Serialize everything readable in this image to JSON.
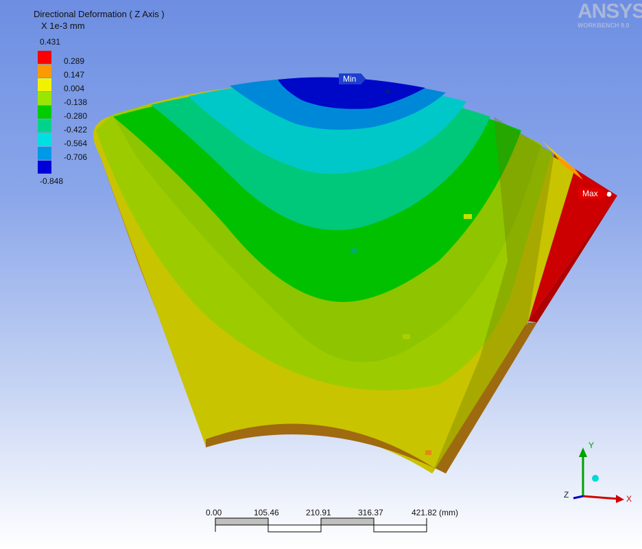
{
  "legend": {
    "title": "Directional Deformation ( Z Axis )",
    "units": "X 1e-3 mm",
    "max": "0.431",
    "min": "-0.848",
    "bands": [
      {
        "value": "0.289",
        "color": "#ff0000"
      },
      {
        "value": "0.147",
        "color": "#ff9900"
      },
      {
        "value": "0.004",
        "color": "#f2f200"
      },
      {
        "value": "-0.138",
        "color": "#99e600"
      },
      {
        "value": "-0.280",
        "color": "#00cc00"
      },
      {
        "value": "-0.422",
        "color": "#00d48c"
      },
      {
        "value": "-0.564",
        "color": "#00e0e0"
      },
      {
        "value": "-0.706",
        "color": "#0099e6"
      },
      {
        "value": "",
        "color": "#0000d9"
      }
    ]
  },
  "brand": {
    "logo": "ANSYS",
    "sub": "WORKBENCH 9.0"
  },
  "probes": {
    "min_label": "Min",
    "max_label": "Max"
  },
  "scale_bar": {
    "ticks": [
      "0.00",
      "105.46",
      "210.91",
      "316.37",
      "421.82 (mm)"
    ]
  },
  "triad": {
    "x": "X",
    "y": "Y",
    "z": "Z"
  }
}
